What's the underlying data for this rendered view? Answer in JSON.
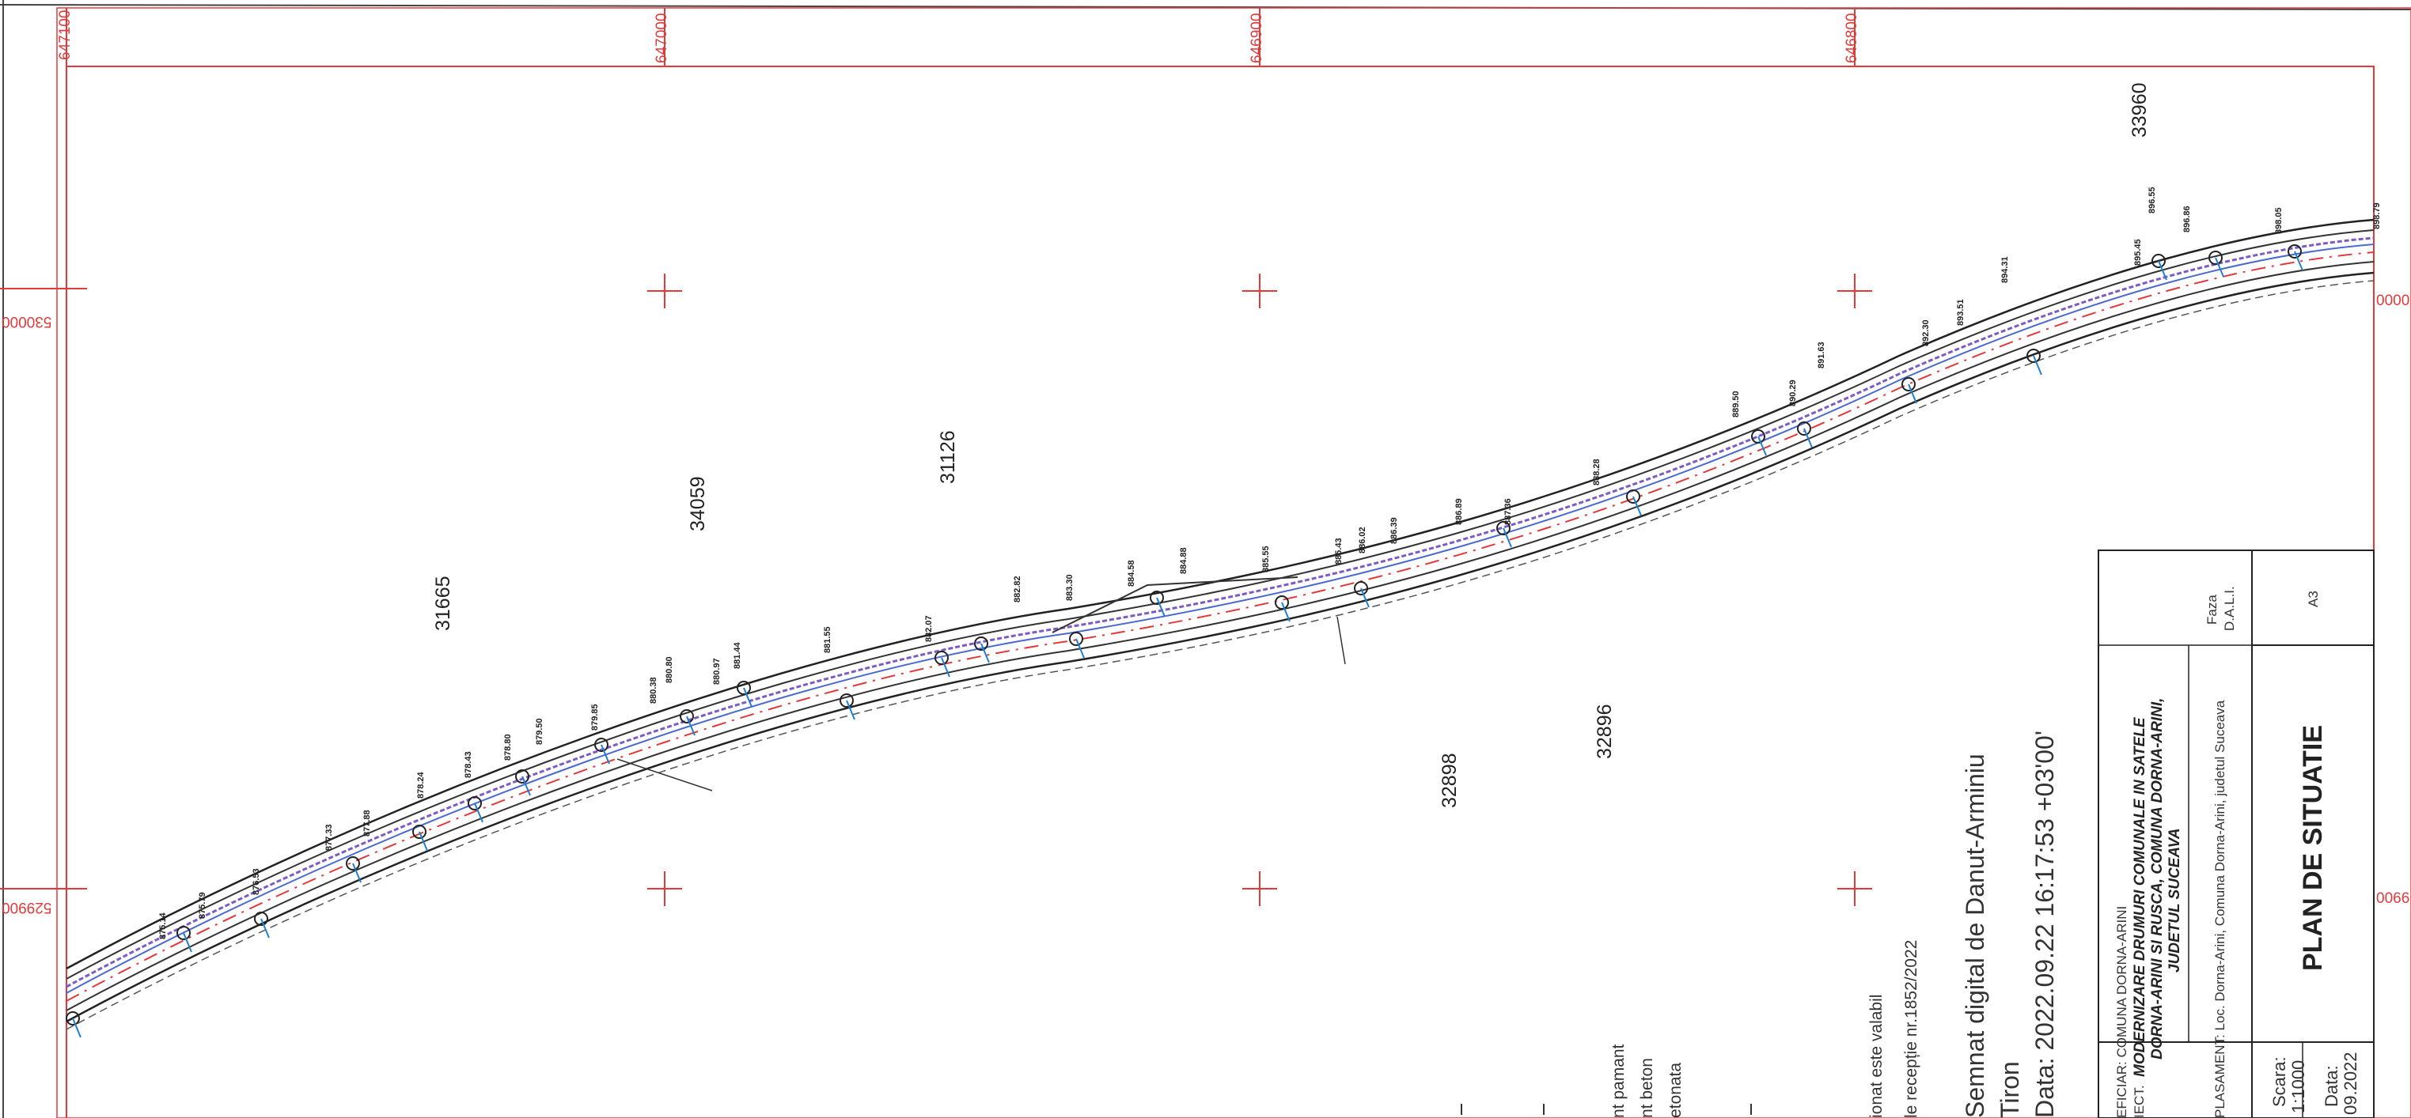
{
  "grid": {
    "top_coords": [
      "647100",
      "647000",
      "646900",
      "646800"
    ],
    "left_coords": [
      "530000",
      "529900"
    ],
    "right_coords": [
      "0000",
      "0066"
    ]
  },
  "parcels": [
    "31665",
    "34059",
    "31126",
    "32898",
    "32896",
    "33960"
  ],
  "elevations": {
    "e1": "875.14",
    "e2": "875.79",
    "e3": "876.53",
    "e4": "877.33",
    "e5": "877.88",
    "e6": "878.24",
    "e7": "878.43",
    "e8": "878.80",
    "e9": "879.50",
    "e10": "879.85",
    "e11": "880.38",
    "e12": "880.80",
    "e13": "880.97",
    "e14": "881.44",
    "e15": "881.55",
    "e16": "882.07",
    "e17": "882.82",
    "e18": "883.30",
    "e19": "884.58",
    "e20": "884.88",
    "e21": "885.55",
    "e22": "885.43",
    "e23": "886.02",
    "e24": "886.39",
    "e25": "886.89",
    "e26": "887.36",
    "e27": "888.28",
    "e28": "889.50",
    "e29": "890.29",
    "e30": "891.63",
    "e31": "892.30",
    "e32": "893.51",
    "e33": "894.31",
    "e34": "895.45",
    "e35": "896.55",
    "e36": "896.86",
    "e37": "898.05",
    "e38": "898.79"
  },
  "signature": {
    "line1": "Semnat digital de Danut-Arminiu",
    "line2": "Tiron",
    "line3": "Data: 2022.09.22 16:17:53 +03'00'",
    "stamp1": "ionat este valabil",
    "stamp2": "le recepție nr.1852/2022"
  },
  "legend": {
    "item1": "nt pamant",
    "item2": "nt beton",
    "item3": "etonata"
  },
  "title_block": {
    "beneficiar": "EFICIAR: COMUNA DORNA-ARINI",
    "proiect_label": "IECT.",
    "proiect1": "MODERNIZARE DRUMURI COMUNALE IN SATELE",
    "proiect2": "DORNA-ARINI SI RUSCA, COMUNA DORNA-ARINI,",
    "proiect3": "JUDETUL SUCEAVA",
    "amplasament": "PLASAMENT: Loc. Dorna-Arini, Comuna Dorna-Arini, judetul  Suceava",
    "faza_label": "Faza",
    "faza_value": "D.A.L.I.",
    "format": "A3",
    "title": "PLAN DE SITUATIE",
    "scara_label": "Scara:",
    "scara_value": "1:1000",
    "data_label": "Data:",
    "data_value": "09.2022"
  },
  "colors": {
    "frame": "#e23a3a",
    "road": "#222222",
    "axis": "#e23a3a",
    "lane": "#7a5cc8",
    "point": "#1e7fd0"
  }
}
